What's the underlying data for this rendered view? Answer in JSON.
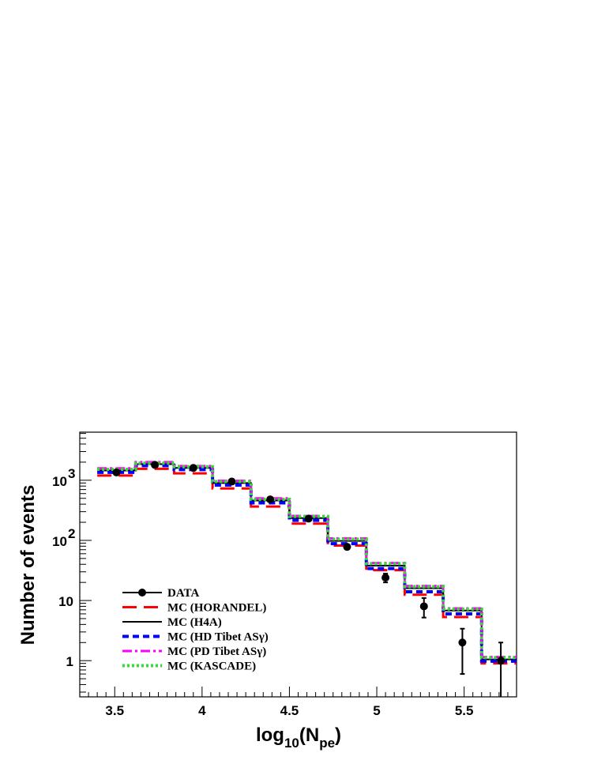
{
  "chart_data": {
    "type": "line",
    "subtype": "step-histogram with data points",
    "title": "",
    "xlabel": {
      "main": "log",
      "sub1": "10",
      "mid": "(N",
      "sub2": "pe",
      "end": ")"
    },
    "ylabel": "Number of events",
    "xlim": [
      3.3,
      5.8
    ],
    "ylim": [
      0.25,
      6300
    ],
    "yscale": "log",
    "grid": false,
    "legend_position": "bottom-left",
    "x_ticks": [
      {
        "value": 3.5,
        "label": "3.5"
      },
      {
        "value": 4,
        "label": "4"
      },
      {
        "value": 4.5,
        "label": "4.5"
      },
      {
        "value": 5,
        "label": "5"
      },
      {
        "value": 5.5,
        "label": "5.5"
      }
    ],
    "y_ticks": [
      {
        "value": 1,
        "label": "1",
        "exp": ""
      },
      {
        "value": 10,
        "label": "10",
        "exp": ""
      },
      {
        "value": 100,
        "label": "10",
        "exp": "2"
      },
      {
        "value": 1000,
        "label": "10",
        "exp": "3"
      }
    ],
    "bin_edges": [
      3.4,
      3.62,
      3.84,
      4.06,
      4.28,
      4.5,
      4.72,
      4.94,
      5.16,
      5.38,
      5.6,
      5.8
    ],
    "data_series": {
      "name": "DATA",
      "color": "#000000",
      "x": [
        3.51,
        3.73,
        3.95,
        4.17,
        4.39,
        4.61,
        4.83,
        5.05,
        5.27,
        5.49,
        5.71
      ],
      "y": [
        1350,
        1800,
        1600,
        950,
        480,
        230,
        78,
        24,
        8,
        2,
        1
      ],
      "err_low": [
        1280,
        1720,
        1520,
        900,
        455,
        215,
        72,
        20,
        5.2,
        0.6,
        0.25
      ],
      "err_high": [
        1420,
        1880,
        1680,
        1000,
        505,
        245,
        84,
        28,
        11,
        3.4,
        2
      ]
    },
    "series": [
      {
        "name": "MC (HORANDEL)",
        "color": "#ff0000",
        "dash": "18,9",
        "width": 3,
        "values": [
          1200,
          1550,
          1300,
          730,
          365,
          190,
          82,
          32,
          12.5,
          5.3,
          0.9
        ]
      },
      {
        "name": "MC (H4A)",
        "color": "#000000",
        "dash": "",
        "width": 2,
        "values": [
          1450,
          1850,
          1600,
          900,
          460,
          235,
          98,
          38,
          16,
          6.8,
          1.05
        ]
      },
      {
        "name": "MC (HD Tibet ASγ)",
        "color": "#0000ff",
        "dash": "8,5",
        "width": 4,
        "values": [
          1350,
          1750,
          1500,
          830,
          420,
          215,
          88,
          34,
          14,
          6.0,
          0.98
        ]
      },
      {
        "name": "MC (PD Tibet ASγ)",
        "color": "#ff00ff",
        "dash": "12,4,3,4",
        "width": 3,
        "values": [
          1580,
          2000,
          1720,
          980,
          500,
          255,
          108,
          42,
          17.5,
          7.4,
          1.15
        ]
      },
      {
        "name": "MC (KASCADE)",
        "color": "#33dd33",
        "dash": "3,3",
        "width": 4,
        "values": [
          1520,
          1920,
          1680,
          950,
          480,
          250,
          105,
          41,
          17,
          7.2,
          1.12
        ]
      }
    ]
  }
}
